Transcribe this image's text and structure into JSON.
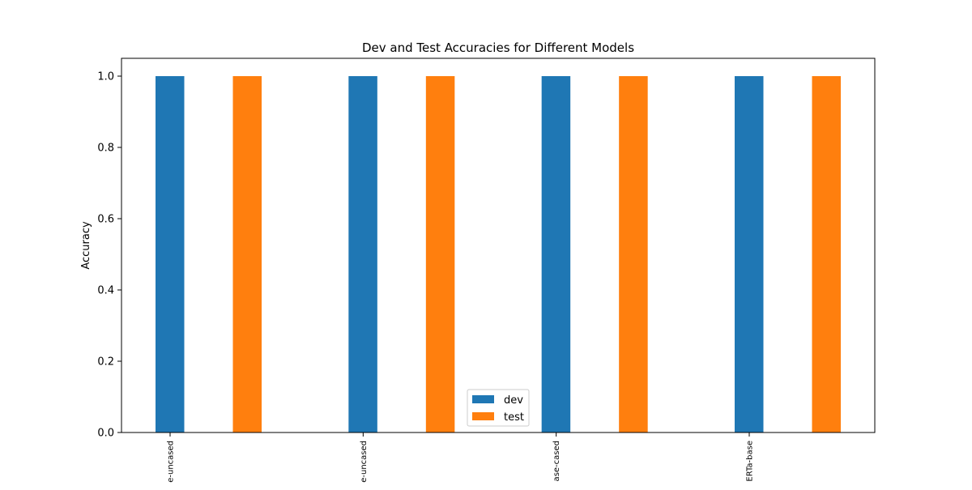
{
  "chart_data": {
    "type": "bar",
    "title": "Dev and Test Accuracies for Different Models",
    "xlabel": "",
    "ylabel": "Accuracy",
    "categories": [
      "e-uncased",
      "e-uncased",
      "ase-cased",
      "ERTa-base"
    ],
    "series": [
      {
        "name": "dev",
        "color": "#1f77b4",
        "values": [
          1.0,
          1.0,
          1.0,
          1.0
        ]
      },
      {
        "name": "test",
        "color": "#ff7f0e",
        "values": [
          1.0,
          1.0,
          1.0,
          1.0
        ]
      }
    ],
    "ylim": [
      0,
      1.05
    ],
    "yticks": [
      "0.0",
      "0.2",
      "0.4",
      "0.6",
      "0.8",
      "1.0"
    ],
    "legend_position": "lower-center",
    "grid": false
  }
}
